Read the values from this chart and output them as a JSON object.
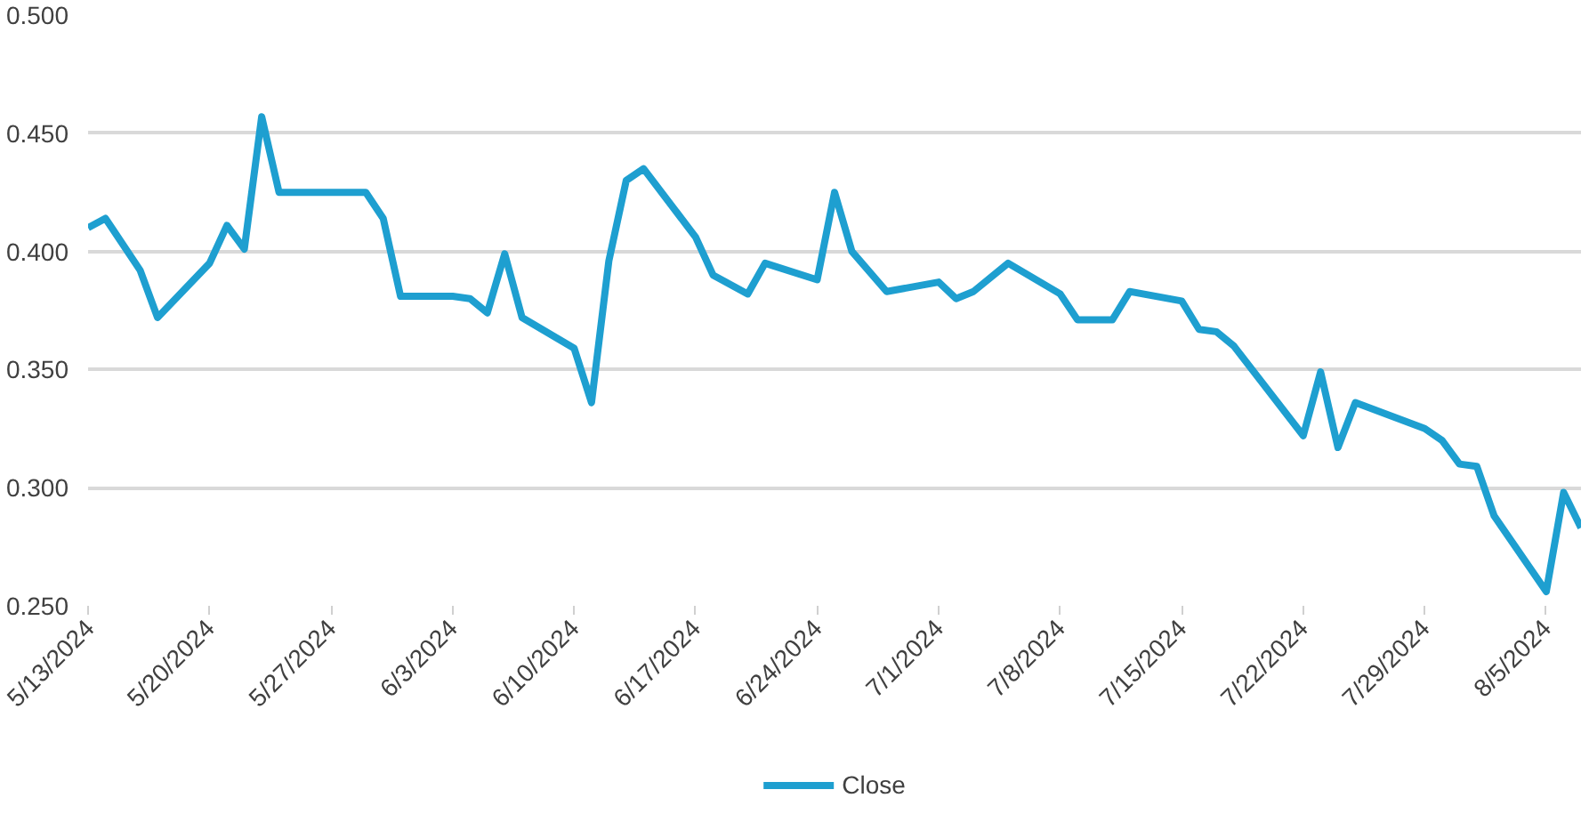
{
  "chart_data": {
    "type": "line",
    "x": [
      "2024-05-13",
      "2024-05-14",
      "2024-05-16",
      "2024-05-17",
      "2024-05-20",
      "2024-05-21",
      "2024-05-22",
      "2024-05-23",
      "2024-05-24",
      "2024-05-28",
      "2024-05-29",
      "2024-05-30",
      "2024-05-31",
      "2024-06-03",
      "2024-06-04",
      "2024-06-05",
      "2024-06-06",
      "2024-06-07",
      "2024-06-10",
      "2024-06-11",
      "2024-06-12",
      "2024-06-13",
      "2024-06-14",
      "2024-06-17",
      "2024-06-18",
      "2024-06-20",
      "2024-06-21",
      "2024-06-24",
      "2024-06-25",
      "2024-06-26",
      "2024-06-28",
      "2024-07-01",
      "2024-07-02",
      "2024-07-03",
      "2024-07-05",
      "2024-07-08",
      "2024-07-09",
      "2024-07-11",
      "2024-07-12",
      "2024-07-15",
      "2024-07-16",
      "2024-07-17",
      "2024-07-18",
      "2024-07-22",
      "2024-07-23",
      "2024-07-24",
      "2024-07-25",
      "2024-07-29",
      "2024-07-30",
      "2024-07-31",
      "2024-08-01",
      "2024-08-02",
      "2024-08-05",
      "2024-08-06",
      "2024-08-07"
    ],
    "series": [
      {
        "name": "Close",
        "color": "#1e9fd0",
        "values": [
          0.41,
          0.414,
          0.392,
          0.372,
          0.395,
          0.411,
          0.401,
          0.457,
          0.425,
          0.425,
          0.425,
          0.414,
          0.381,
          0.381,
          0.38,
          0.374,
          0.399,
          0.372,
          0.359,
          0.336,
          0.396,
          0.43,
          0.435,
          0.406,
          0.39,
          0.382,
          0.395,
          0.388,
          0.425,
          0.4,
          0.383,
          0.387,
          0.38,
          0.383,
          0.395,
          0.382,
          0.371,
          0.371,
          0.383,
          0.379,
          0.367,
          0.366,
          0.36,
          0.322,
          0.349,
          0.317,
          0.336,
          0.325,
          0.32,
          0.31,
          0.309,
          0.288,
          0.256,
          0.298,
          0.283
        ]
      }
    ],
    "xlim": [
      "2024-05-13",
      "2024-08-07"
    ],
    "xticks": [
      {
        "value": "2024-05-13",
        "label": "5/13/2024"
      },
      {
        "value": "2024-05-20",
        "label": "5/20/2024"
      },
      {
        "value": "2024-05-27",
        "label": "5/27/2024"
      },
      {
        "value": "2024-06-03",
        "label": "6/3/2024"
      },
      {
        "value": "2024-06-10",
        "label": "6/10/2024"
      },
      {
        "value": "2024-06-17",
        "label": "6/17/2024"
      },
      {
        "value": "2024-06-24",
        "label": "6/24/2024"
      },
      {
        "value": "2024-07-01",
        "label": "7/1/2024"
      },
      {
        "value": "2024-07-08",
        "label": "7/8/2024"
      },
      {
        "value": "2024-07-15",
        "label": "7/15/2024"
      },
      {
        "value": "2024-07-22",
        "label": "7/22/2024"
      },
      {
        "value": "2024-07-29",
        "label": "7/29/2024"
      },
      {
        "value": "2024-08-05",
        "label": "8/5/2024"
      }
    ],
    "ylim": [
      0.25,
      0.5
    ],
    "yticks": [
      {
        "value": 0.25,
        "label": "0.250"
      },
      {
        "value": 0.3,
        "label": "0.300"
      },
      {
        "value": 0.35,
        "label": "0.350"
      },
      {
        "value": 0.4,
        "label": "0.400"
      },
      {
        "value": 0.45,
        "label": "0.450"
      },
      {
        "value": 0.5,
        "label": "0.500"
      }
    ],
    "grid": "y",
    "legend": "bottom",
    "line_style": "solid"
  }
}
